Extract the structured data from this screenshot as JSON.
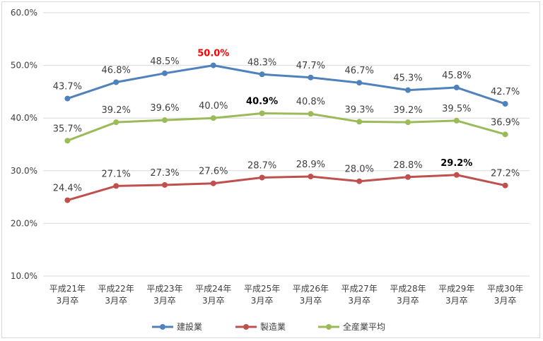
{
  "chart_data": {
    "type": "line",
    "title": "",
    "xlabel": "",
    "ylabel": "",
    "ylim": [
      10,
      60
    ],
    "yticks": [
      10,
      20,
      30,
      40,
      50,
      60
    ],
    "ytick_labels": [
      "10.0%",
      "20.0%",
      "30.0%",
      "40.0%",
      "50.0%",
      "60.0%"
    ],
    "grid": true,
    "legend_position": "bottom",
    "categories": [
      [
        "平成21年",
        "3月卒"
      ],
      [
        "平成22年",
        "3月卒"
      ],
      [
        "平成23年",
        "3月卒"
      ],
      [
        "平成24年",
        "3月卒"
      ],
      [
        "平成25年",
        "3月卒"
      ],
      [
        "平成26年",
        "3月卒"
      ],
      [
        "平成27年",
        "3月卒"
      ],
      [
        "平成28年",
        "3月卒"
      ],
      [
        "平成29年",
        "3月卒"
      ],
      [
        "平成30年",
        "3月卒"
      ]
    ],
    "series": [
      {
        "name": "建設業",
        "color": "#4f81bd",
        "values": [
          43.7,
          46.8,
          48.5,
          50.0,
          48.3,
          47.7,
          46.7,
          45.3,
          45.8,
          42.7
        ],
        "labels": [
          "43.7%",
          "46.8%",
          "48.5%",
          "50.0%",
          "48.3%",
          "47.7%",
          "46.7%",
          "45.3%",
          "45.8%",
          "42.7%"
        ],
        "highlight_index": 3,
        "highlight_color": "#ff0000"
      },
      {
        "name": "製造業",
        "color": "#c0504d",
        "values": [
          24.4,
          27.1,
          27.3,
          27.6,
          28.7,
          28.9,
          28.0,
          28.8,
          29.2,
          27.2
        ],
        "labels": [
          "24.4%",
          "27.1%",
          "27.3%",
          "27.6%",
          "28.7%",
          "28.9%",
          "28.0%",
          "28.8%",
          "29.2%",
          "27.2%"
        ],
        "highlight_index": 8,
        "highlight_color": "#000000"
      },
      {
        "name": "全産業平均",
        "color": "#9bbb59",
        "values": [
          35.7,
          39.2,
          39.6,
          40.0,
          40.9,
          40.8,
          39.3,
          39.2,
          39.5,
          36.9
        ],
        "labels": [
          "35.7%",
          "39.2%",
          "39.6%",
          "40.0%",
          "40.9%",
          "40.8%",
          "39.3%",
          "39.2%",
          "39.5%",
          "36.9%"
        ],
        "highlight_index": 4,
        "highlight_color": "#000000"
      }
    ]
  }
}
